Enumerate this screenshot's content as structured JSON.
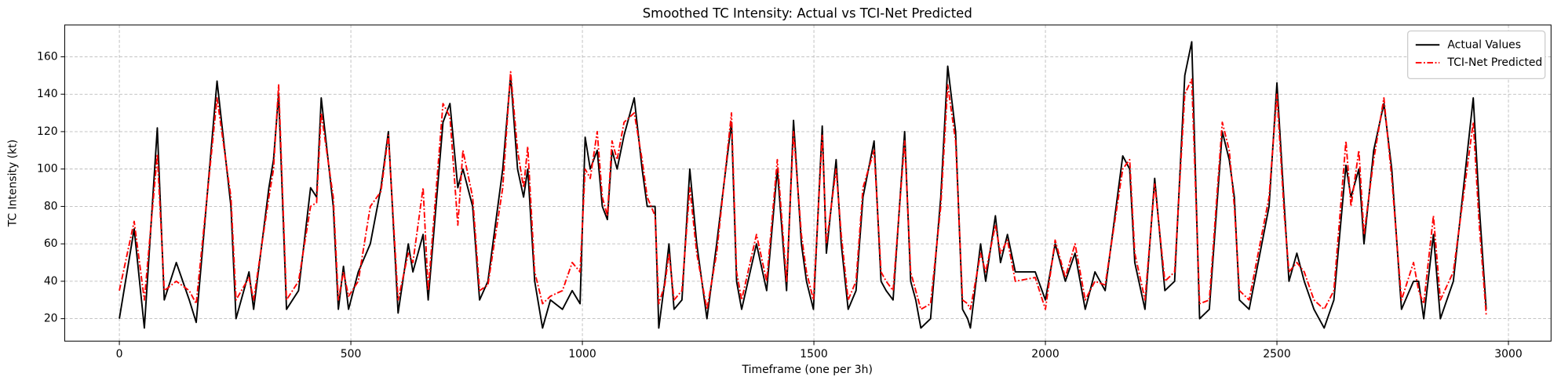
{
  "chart_data": {
    "type": "line",
    "title": "Smoothed TC Intensity: Actual vs TCI-Net Predicted",
    "x_label": "Timeframe (one per 3h)",
    "y_label": "TC Intensity (kt)",
    "xlim": [
      -118,
      3092
    ],
    "ylim": [
      8,
      177
    ],
    "xticks": [
      0,
      500,
      1000,
      1500,
      2000,
      2500,
      3000
    ],
    "yticks": [
      20,
      40,
      60,
      80,
      100,
      120,
      140,
      160
    ],
    "grid": true,
    "legend": "upper right",
    "x": [
      0,
      32,
      54,
      82,
      97,
      123,
      151,
      166,
      211,
      241,
      252,
      280,
      290,
      323,
      333,
      344,
      361,
      387,
      413,
      426,
      436,
      462,
      473,
      484,
      495,
      516,
      542,
      565,
      581,
      602,
      624,
      634,
      656,
      667,
      699,
      714,
      731,
      742,
      763,
      778,
      796,
      828,
      845,
      860,
      873,
      882,
      897,
      914,
      931,
      957,
      978,
      995,
      1006,
      1017,
      1032,
      1043,
      1054,
      1064,
      1075,
      1090,
      1112,
      1129,
      1140,
      1157,
      1165,
      1178,
      1187,
      1198,
      1215,
      1232,
      1247,
      1269,
      1290,
      1322,
      1333,
      1344,
      1376,
      1398,
      1421,
      1441,
      1456,
      1473,
      1484,
      1499,
      1518,
      1527,
      1548,
      1559,
      1574,
      1591,
      1606,
      1630,
      1645,
      1656,
      1671,
      1696,
      1709,
      1720,
      1731,
      1752,
      1774,
      1789,
      1806,
      1821,
      1832,
      1838,
      1860,
      1871,
      1892,
      1903,
      1918,
      1935,
      1978,
      2000,
      2021,
      2043,
      2064,
      2086,
      2107,
      2129,
      2167,
      2182,
      2193,
      2215,
      2236,
      2258,
      2279,
      2301,
      2316,
      2333,
      2354,
      2382,
      2397,
      2408,
      2419,
      2440,
      2483,
      2500,
      2516,
      2526,
      2543,
      2559,
      2580,
      2602,
      2623,
      2649,
      2660,
      2677,
      2688,
      2709,
      2731,
      2748,
      2769,
      2795,
      2806,
      2817,
      2838,
      2853,
      2881,
      2924,
      2937,
      2952
    ],
    "series": [
      {
        "name": "Actual Values",
        "color": "#000000",
        "dash": "solid",
        "values": [
          20,
          68,
          15,
          122,
          30,
          50,
          30,
          18,
          147,
          80,
          20,
          45,
          25,
          90,
          105,
          140,
          25,
          35,
          90,
          85,
          138,
          80,
          25,
          48,
          25,
          45,
          60,
          90,
          120,
          23,
          60,
          45,
          65,
          30,
          125,
          135,
          90,
          100,
          80,
          30,
          40,
          100,
          150,
          100,
          85,
          100,
          40,
          15,
          30,
          25,
          35,
          28,
          117,
          100,
          110,
          80,
          73,
          110,
          100,
          118,
          138,
          100,
          80,
          80,
          15,
          40,
          60,
          25,
          30,
          100,
          60,
          20,
          60,
          125,
          40,
          25,
          60,
          35,
          100,
          35,
          126,
          60,
          40,
          25,
          123,
          55,
          105,
          60,
          25,
          35,
          85,
          115,
          40,
          35,
          30,
          120,
          40,
          30,
          15,
          20,
          85,
          155,
          120,
          25,
          20,
          15,
          60,
          40,
          75,
          50,
          65,
          45,
          45,
          30,
          60,
          40,
          55,
          25,
          45,
          35,
          107,
          100,
          50,
          25,
          95,
          35,
          40,
          150,
          168,
          20,
          25,
          120,
          105,
          85,
          30,
          25,
          80,
          146,
          80,
          40,
          55,
          40,
          25,
          15,
          30,
          102,
          85,
          100,
          60,
          110,
          135,
          100,
          25,
          40,
          40,
          20,
          65,
          20,
          40,
          138,
          80,
          25
        ]
      },
      {
        "name": "TCI-Net Predicted",
        "color": "#ff0000",
        "dash": "dashdot",
        "values": [
          35,
          72,
          30,
          108,
          35,
          40,
          35,
          28,
          138,
          85,
          30,
          42,
          30,
          85,
          100,
          145,
          30,
          40,
          80,
          82,
          130,
          85,
          30,
          45,
          32,
          40,
          80,
          88,
          118,
          30,
          55,
          50,
          90,
          35,
          135,
          128,
          70,
          110,
          85,
          35,
          38,
          90,
          152,
          110,
          90,
          112,
          45,
          28,
          32,
          35,
          50,
          45,
          100,
          95,
          120,
          85,
          75,
          115,
          105,
          125,
          130,
          105,
          85,
          75,
          28,
          38,
          55,
          30,
          35,
          90,
          55,
          25,
          55,
          130,
          45,
          30,
          65,
          40,
          105,
          40,
          120,
          65,
          45,
          30,
          118,
          60,
          100,
          65,
          30,
          40,
          90,
          110,
          45,
          40,
          35,
          115,
          45,
          35,
          25,
          28,
          80,
          145,
          115,
          30,
          28,
          25,
          55,
          45,
          70,
          55,
          62,
          40,
          42,
          25,
          62,
          42,
          60,
          30,
          40,
          38,
          100,
          105,
          55,
          30,
          92,
          40,
          45,
          140,
          148,
          28,
          30,
          125,
          110,
          80,
          35,
          30,
          85,
          140,
          75,
          45,
          50,
          45,
          30,
          25,
          35,
          115,
          80,
          110,
          65,
          105,
          138,
          95,
          30,
          50,
          35,
          28,
          75,
          30,
          45,
          125,
          70,
          22
        ]
      }
    ]
  }
}
